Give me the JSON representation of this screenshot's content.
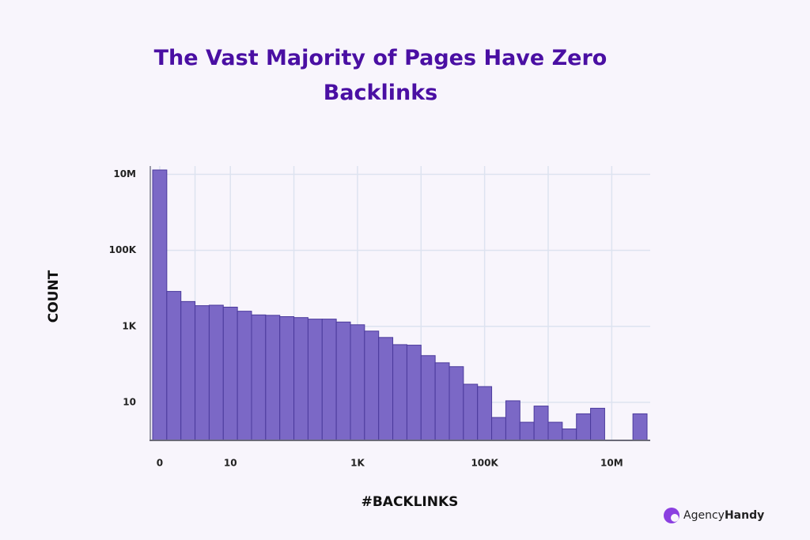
{
  "chart_data": {
    "type": "bar",
    "title": "The Vast Majority of Pages Have Zero Backlinks",
    "xlabel": "#BACKLINKS",
    "ylabel": "COUNT",
    "categories": [
      "0",
      null,
      null,
      null,
      null,
      "10",
      null,
      null,
      null,
      null,
      null,
      null,
      null,
      null,
      "1K",
      null,
      null,
      null,
      null,
      null,
      null,
      null,
      null,
      "100K",
      null,
      null,
      null,
      null,
      null,
      null,
      null,
      null,
      "10M",
      null,
      null
    ],
    "values": [
      13000000,
      8300,
      4500,
      3500,
      3600,
      3200,
      2500,
      2000,
      1950,
      1800,
      1700,
      1550,
      1550,
      1300,
      1100,
      750,
      510,
      330,
      320,
      170,
      110,
      87,
      30,
      26,
      4,
      11,
      3,
      8,
      3,
      2,
      5,
      7,
      1,
      1,
      5
    ],
    "color": "#7b68c6",
    "yscale": "log",
    "ylim": [
      1,
      20000000
    ],
    "yticks": [
      {
        "value": 10000000,
        "label": "10M"
      },
      {
        "value": 100000,
        "label": "100K"
      },
      {
        "value": 1000,
        "label": "1K"
      },
      10
    ],
    "grid": true
  },
  "logo": {
    "text_1": "Agency",
    "text_2": "Handy"
  }
}
